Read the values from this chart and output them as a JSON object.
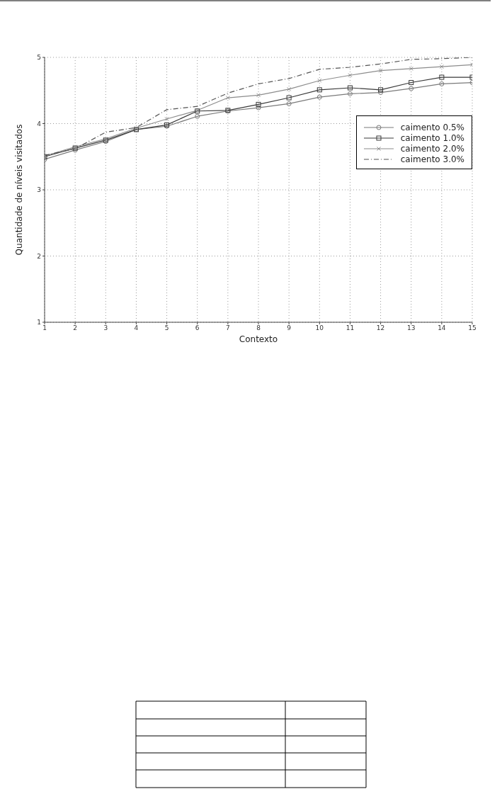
{
  "chart_data": {
    "type": "line",
    "xlabel": "Contexto",
    "ylabel": "Quantidade de níveis visitados",
    "x": [
      1,
      2,
      3,
      4,
      5,
      6,
      7,
      8,
      9,
      10,
      11,
      12,
      13,
      14,
      15
    ],
    "xlim": [
      1,
      15
    ],
    "xticks": [
      1,
      2,
      3,
      4,
      5,
      6,
      7,
      8,
      9,
      10,
      11,
      12,
      13,
      14,
      15
    ],
    "ylim": [
      1,
      5
    ],
    "yticks": [
      1,
      2,
      3,
      4,
      5
    ],
    "grid": true,
    "legend": "top right",
    "series": [
      {
        "name": "caimento 0.5%",
        "color": "#7a7a7a",
        "marker": "circle",
        "line_style": "solid",
        "values": [
          3.46,
          3.6,
          3.73,
          3.91,
          3.96,
          4.11,
          4.19,
          4.24,
          4.3,
          4.4,
          4.45,
          4.47,
          4.53,
          4.6,
          4.62
        ]
      },
      {
        "name": "caimento 1.0%",
        "color": "#3a3a3a",
        "marker": "square",
        "line_style": "solid",
        "values": [
          3.5,
          3.63,
          3.75,
          3.91,
          3.98,
          4.19,
          4.2,
          4.29,
          4.39,
          4.51,
          4.54,
          4.51,
          4.62,
          4.7,
          4.7
        ]
      },
      {
        "name": "caimento 2.0%",
        "color": "#8c8c8c",
        "marker": "cross",
        "line_style": "solid",
        "values": [
          3.51,
          3.65,
          3.77,
          3.93,
          4.07,
          4.2,
          4.39,
          4.43,
          4.52,
          4.65,
          4.73,
          4.8,
          4.83,
          4.86,
          4.89
        ]
      },
      {
        "name": "caimento 3.0%",
        "color": "#555555",
        "marker": "none",
        "line_style": "dashed",
        "values": [
          3.52,
          3.62,
          3.87,
          3.94,
          4.21,
          4.26,
          4.46,
          4.6,
          4.68,
          4.82,
          4.85,
          4.9,
          4.97,
          4.98,
          5.0
        ]
      }
    ]
  }
}
